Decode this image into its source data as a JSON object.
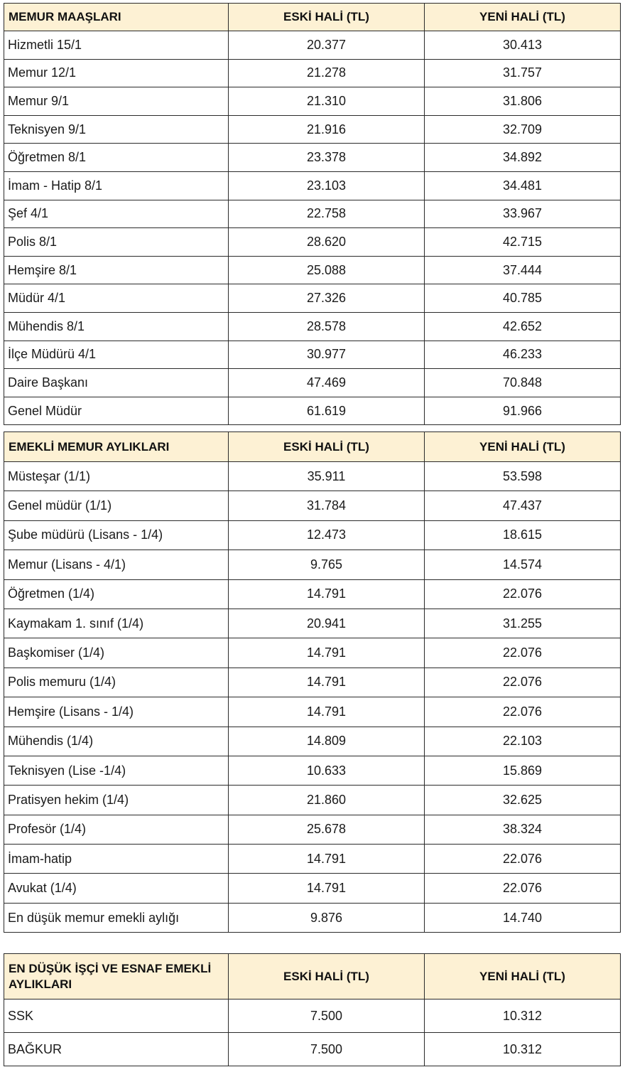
{
  "memur_maaslari": {
    "headers": [
      "MEMUR MAAŞLARI",
      "ESKİ HALİ (TL)",
      "YENİ HALİ (TL)"
    ],
    "rows": [
      [
        "Hizmetli 15/1",
        "20.377",
        "30.413"
      ],
      [
        "Memur 12/1",
        "21.278",
        "31.757"
      ],
      [
        "Memur 9/1",
        "21.310",
        "31.806"
      ],
      [
        "Teknisyen 9/1",
        "21.916",
        "32.709"
      ],
      [
        "Öğretmen 8/1",
        "23.378",
        "34.892"
      ],
      [
        "İmam - Hatip 8/1",
        "23.103",
        "34.481"
      ],
      [
        "Şef 4/1",
        "22.758",
        "33.967"
      ],
      [
        "Polis 8/1",
        "28.620",
        "42.715"
      ],
      [
        "Hemşire 8/1",
        "25.088",
        "37.444"
      ],
      [
        "Müdür 4/1",
        "27.326",
        "40.785"
      ],
      [
        "Mühendis 8/1",
        "28.578",
        "42.652"
      ],
      [
        "İlçe Müdürü 4/1",
        "30.977",
        "46.233"
      ],
      [
        "Daire Başkanı",
        "47.469",
        "70.848"
      ],
      [
        "Genel Müdür",
        "61.619",
        "91.966"
      ]
    ]
  },
  "emekli_memur_aylıklari": {
    "headers": [
      "EMEKLİ MEMUR AYLIKLARI",
      "ESKİ HALİ (TL)",
      "YENİ HALİ (TL)"
    ],
    "rows": [
      [
        "Müsteşar (1/1)",
        "35.911",
        "53.598"
      ],
      [
        "Genel müdür (1/1)",
        "31.784",
        "47.437"
      ],
      [
        "Şube müdürü (Lisans - 1/4)",
        "12.473",
        "18.615"
      ],
      [
        "Memur (Lisans - 4/1)",
        "9.765",
        "14.574"
      ],
      [
        "Öğretmen (1/4)",
        "14.791",
        "22.076"
      ],
      [
        "Kaymakam 1. sınıf (1/4)",
        "20.941",
        "31.255"
      ],
      [
        "Başkomiser (1/4)",
        "14.791",
        "22.076"
      ],
      [
        "Polis memuru (1/4)",
        "14.791",
        "22.076"
      ],
      [
        "Hemşire (Lisans - 1/4)",
        "14.791",
        "22.076"
      ],
      [
        "Mühendis (1/4)",
        "14.809",
        "22.103"
      ],
      [
        "Teknisyen (Lise -1/4)",
        "10.633",
        "15.869"
      ],
      [
        "Pratisyen hekim (1/4)",
        "21.860",
        "32.625"
      ],
      [
        "Profesör (1/4)",
        "25.678",
        "38.324"
      ],
      [
        "İmam-hatip",
        "14.791",
        "22.076"
      ],
      [
        "Avukat (1/4)",
        "14.791",
        "22.076"
      ],
      [
        "En düşük memur emekli aylığı",
        "9.876",
        "14.740"
      ]
    ]
  },
  "isci_esnaf": {
    "headers": [
      "EN DÜŞÜK İŞÇİ VE ESNAF EMEKLİ AYLIKLARI",
      "ESKİ HALİ (TL)",
      "YENİ HALİ (TL)"
    ],
    "rows": [
      [
        "SSK",
        "7.500",
        "10.312"
      ],
      [
        "BAĞKUR",
        "7.500",
        "10.312"
      ]
    ]
  },
  "colors": {
    "header_background": "#fdf1d4",
    "border": "#2a2a2a"
  }
}
